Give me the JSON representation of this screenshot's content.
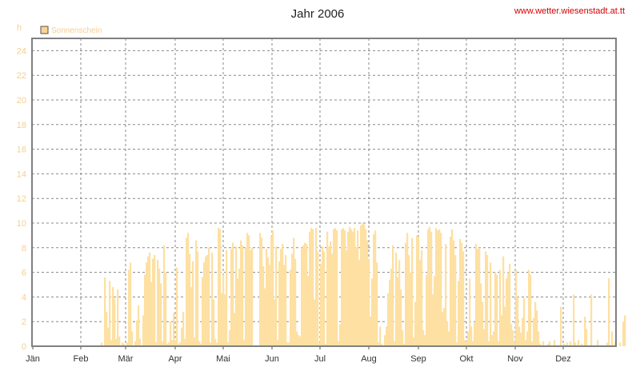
{
  "chart_data": {
    "type": "bar",
    "title": "Jahr 2006",
    "credit": "www.wetter.wiesenstadt.at.tt",
    "ylabel": "h",
    "ylim": [
      0,
      25
    ],
    "yticks": [
      0,
      2,
      4,
      6,
      8,
      10,
      12,
      14,
      16,
      18,
      20,
      22,
      24
    ],
    "months": [
      "Jän",
      "Feb",
      "Mär",
      "Apr",
      "Mai",
      "Jun",
      "Jul",
      "Aug",
      "Sep",
      "Okt",
      "Nov",
      "Dez"
    ],
    "grid": true,
    "legend_placement": "top-left",
    "colors": {
      "bar": "#fde0a2",
      "legend_swatch": "#fcd48f",
      "grid": "#888888"
    },
    "series": [
      {
        "name": "Sonnenschein",
        "x_unit": "day of year",
        "values": [
          0,
          0,
          0,
          0,
          0,
          0,
          0,
          0,
          0,
          0,
          0,
          0,
          0,
          0,
          0,
          0,
          0,
          0,
          0,
          0,
          0,
          0,
          0,
          0,
          0,
          0,
          0,
          0,
          0,
          0,
          0,
          0,
          0,
          0,
          0,
          0,
          0,
          0,
          0,
          0,
          0,
          0,
          0,
          0.3,
          0,
          5.6,
          2.8,
          1.5,
          5.3,
          0.5,
          4.8,
          3.9,
          0.6,
          4.6,
          0.8,
          0,
          0.3,
          0.2,
          0,
          0.3,
          6.2,
          6.8,
          1.2,
          0,
          0.4,
          2.1,
          3.3,
          0.6,
          0,
          2.5,
          5.8,
          6.8,
          7.3,
          7.6,
          5.2,
          7.1,
          7.4,
          0.3,
          7.0,
          6.3,
          5.1,
          0.4,
          8.2,
          6.0,
          0.2,
          0.3,
          2.0,
          0.5,
          2.7,
          0.5,
          6.4,
          0.2,
          0.3,
          1.5,
          2.8,
          0.6,
          8.8,
          9.2,
          7.5,
          4.8,
          6.9,
          0.7,
          8.6,
          7.7,
          0.4,
          0.2,
          5.6,
          6.8,
          7.3,
          7.4,
          8.0,
          0.3,
          7.6,
          3.8,
          0.6,
          0.3,
          9.6,
          9.5,
          4.3,
          5.8,
          4.2,
          7.8,
          0.3,
          1.3,
          7.9,
          8.4,
          2.7,
          8.1,
          5.5,
          6.3,
          8.6,
          8.2,
          0.5,
          8.0,
          9.2,
          9.0,
          7.8,
          8.0,
          0,
          0,
          0,
          0,
          9.2,
          8.8,
          6.5,
          4.7,
          7.9,
          7.2,
          6.6,
          8.9,
          9.4,
          3.8,
          8.1,
          0.5,
          6.9,
          7.9,
          8.3,
          6.6,
          7.4,
          0.3,
          0.3,
          6.2,
          7.5,
          8.8,
          7.1,
          1.2,
          0.9,
          0.8,
          8.0,
          8.2,
          8.4,
          8.3,
          5.7,
          9.3,
          9.6,
          9.5,
          3.8,
          9.6,
          7.7,
          0.3,
          6.7,
          8.1,
          7.7,
          0.2,
          9.3,
          8.1,
          8.5,
          7.5,
          9.5,
          9.6,
          9.4,
          0.4,
          1.8,
          9.5,
          9.6,
          9.4,
          7.8,
          9.3,
          9.7,
          9.5,
          9.3,
          9.6,
          8.0,
          9.4,
          7.0,
          9.8,
          10.0,
          9.9,
          9.5,
          8.6,
          7.1,
          2.4,
          5.5,
          9.1,
          9.4,
          6.8,
          0.3,
          1.6,
          0.2,
          0,
          0.9,
          1.6,
          4.3,
          5.4,
          6.3,
          8.2,
          0.4,
          7.6,
          5.6,
          7.0,
          4.6,
          1.3,
          0.2,
          8.4,
          9.2,
          7.4,
          6.0,
          8.8,
          0.7,
          3.6,
          9.0,
          8.9,
          7.0,
          7.8,
          1.3,
          0.9,
          5.8,
          9.5,
          9.7,
          9.3,
          4.2,
          5.7,
          9.6,
          9.4,
          9.5,
          9.2,
          2.8,
          3.1,
          8.3,
          2.0,
          1.2,
          8.9,
          9.5,
          8.6,
          7.4,
          0.3,
          5.3,
          8.7,
          8.4,
          7.7,
          0.5,
          0.4,
          1.2,
          5.5,
          1.6,
          0.4,
          1.9,
          8.3,
          7.9,
          8.0,
          5.1,
          3.6,
          1.4,
          7.7,
          7.4,
          0.4,
          6.8,
          0.9,
          1.2,
          6.0,
          5.8,
          0.4,
          6.2,
          2.5,
          7.3,
          3.2,
          5.5,
          6.0,
          6.7,
          1.8,
          1.3,
          0.3,
          6.2,
          4.0,
          1.6,
          1.1,
          2.3,
          3.9,
          0.5,
          1.2,
          6.2,
          5.8,
          0.4,
          2.3,
          3.6,
          2.9,
          1.2,
          0.2,
          0,
          0.4,
          0,
          0,
          0.2,
          0.4,
          0,
          0,
          0.5,
          0,
          0,
          0,
          3.2,
          0,
          0.2,
          0,
          0.3,
          0,
          0.4,
          0,
          4.2,
          0.3,
          0,
          0.5,
          0,
          0.2,
          0,
          2.4,
          1.4,
          0,
          0,
          4.2,
          0,
          0,
          0,
          0.5,
          0,
          0,
          0,
          0,
          0,
          0.3,
          5.5,
          0,
          1.2,
          0,
          0.4,
          0,
          0,
          0.3,
          0,
          2.0,
          2.5
        ]
      }
    ]
  }
}
